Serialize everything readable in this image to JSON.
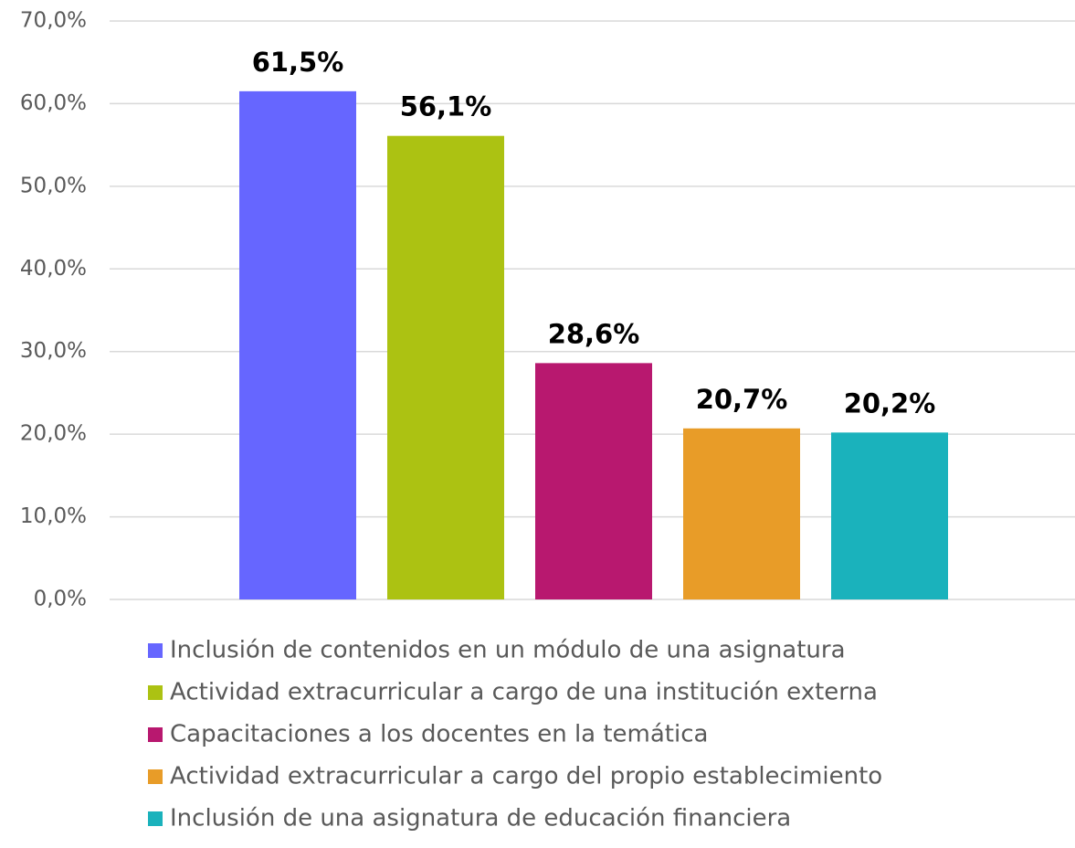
{
  "chart_data": {
    "type": "bar",
    "categories": [
      null
    ],
    "series": [
      {
        "name": "Inclusión de contenidos en un módulo de una asignatura",
        "color": "#6666ff",
        "values": [
          61.5
        ],
        "value_labels": [
          "61,5%"
        ]
      },
      {
        "name": "Actividad extracurricular a cargo de una institución externa",
        "color": "#acc212",
        "values": [
          56.1
        ],
        "value_labels": [
          "56,1%"
        ]
      },
      {
        "name": "Capacitaciones a los docentes en la temática",
        "color": "#b8186f",
        "values": [
          28.6
        ],
        "value_labels": [
          "28,6%"
        ]
      },
      {
        "name": "Actividad extracurricular a cargo del propio establecimiento",
        "color": "#e89c28",
        "values": [
          20.7
        ],
        "value_labels": [
          "20,7%"
        ]
      },
      {
        "name": "Inclusión de una asignatura de educación financiera",
        "color": "#1ab2bc",
        "values": [
          20.2
        ],
        "value_labels": [
          "20,2%"
        ]
      }
    ],
    "ylim": [
      0,
      70
    ],
    "yticks": [
      {
        "value": 0,
        "label": "0,0%"
      },
      {
        "value": 10,
        "label": "10,0%"
      },
      {
        "value": 20,
        "label": "20,0%"
      },
      {
        "value": 30,
        "label": "30,0%"
      },
      {
        "value": 40,
        "label": "40,0%"
      },
      {
        "value": 50,
        "label": "50,0%"
      },
      {
        "value": 60,
        "label": "60,0%"
      },
      {
        "value": 70,
        "label": "70,0%"
      }
    ],
    "grid": true,
    "legend": "bottom"
  }
}
